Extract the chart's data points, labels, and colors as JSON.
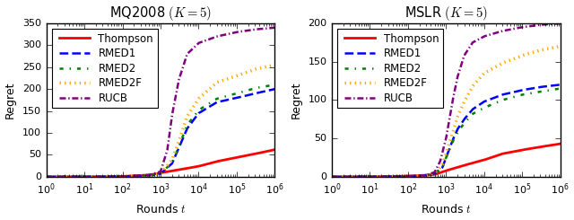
{
  "plots": [
    {
      "title": "MQ2008 $(K=5)$",
      "ylabel": "Regret",
      "xlabel": "Rounds $t$",
      "ylim": [
        0,
        350
      ],
      "yticks": [
        0,
        50,
        100,
        150,
        200,
        250,
        300,
        350
      ],
      "xlim": [
        1,
        1000000
      ]
    },
    {
      "title": "MSLR $(K=5)$",
      "ylabel": "Regret",
      "xlabel": "Rounds $t$",
      "ylim": [
        0,
        200
      ],
      "yticks": [
        0,
        50,
        100,
        150,
        200
      ],
      "xlim": [
        1,
        1000000
      ]
    }
  ],
  "algorithms": [
    {
      "name": "Thompson",
      "color": "#ff0000",
      "linestyle": "-",
      "linewidth": 2.0
    },
    {
      "name": "RMED1",
      "color": "#0000ff",
      "linestyle": "--",
      "linewidth": 1.8
    },
    {
      "name": "RMED2",
      "color": "#008000",
      "linestyle": "-.",
      "linewidth": 1.8
    },
    {
      "name": "RMED2F",
      "color": "#ffaa00",
      "linestyle": ":",
      "linewidth": 2.2
    },
    {
      "name": "RUCB",
      "color": "#800080",
      "linestyle": "-.",
      "linewidth": 1.8
    }
  ],
  "curves": {
    "MQ2008": {
      "Thompson": {
        "x": [
          1,
          5,
          10,
          50,
          100,
          500,
          1000,
          3000,
          10000,
          30000,
          100000,
          300000,
          1000000
        ],
        "y": [
          0,
          0.05,
          0.1,
          0.5,
          1.0,
          4,
          9,
          16,
          24,
          35,
          44,
          52,
          62
        ]
      },
      "RMED1": {
        "x": [
          1,
          10,
          100,
          500,
          1000,
          2000,
          3000,
          5000,
          10000,
          30000,
          100000,
          300000,
          1000000
        ],
        "y": [
          0,
          0.1,
          0.8,
          3,
          7,
          30,
          65,
          110,
          145,
          170,
          180,
          190,
          200
        ]
      },
      "RMED2": {
        "x": [
          1,
          10,
          100,
          500,
          1000,
          2000,
          3000,
          5000,
          10000,
          30000,
          100000,
          300000,
          1000000
        ],
        "y": [
          0,
          0.1,
          0.8,
          3,
          7,
          32,
          68,
          118,
          152,
          178,
          190,
          202,
          210
        ]
      },
      "RMED2F": {
        "x": [
          1,
          10,
          100,
          500,
          1000,
          2000,
          3000,
          5000,
          10000,
          30000,
          100000,
          300000,
          1000000
        ],
        "y": [
          0,
          0.1,
          0.8,
          3,
          8,
          38,
          80,
          138,
          178,
          215,
          230,
          245,
          255
        ]
      },
      "RUCB": {
        "x": [
          1,
          10,
          100,
          500,
          1000,
          1500,
          2000,
          3000,
          5000,
          10000,
          30000,
          100000,
          300000,
          1000000
        ],
        "y": [
          0,
          0.1,
          0.8,
          4,
          12,
          60,
          140,
          220,
          280,
          305,
          320,
          330,
          336,
          340
        ]
      }
    },
    "MSLR": {
      "Thompson": {
        "x": [
          1,
          10,
          100,
          300,
          500,
          1000,
          3000,
          10000,
          30000,
          100000,
          300000,
          1000000
        ],
        "y": [
          0,
          0.1,
          0.8,
          2,
          3,
          8,
          15,
          22,
          30,
          35,
          39,
          43
        ]
      },
      "RMED1": {
        "x": [
          1,
          10,
          100,
          300,
          500,
          800,
          1000,
          1500,
          2000,
          3000,
          5000,
          10000,
          30000,
          100000,
          300000,
          1000000
        ],
        "y": [
          0,
          0.1,
          0.8,
          2,
          4,
          12,
          25,
          48,
          62,
          75,
          88,
          98,
          107,
          113,
          117,
          120
        ]
      },
      "RMED2": {
        "x": [
          1,
          10,
          100,
          300,
          500,
          800,
          1000,
          1500,
          2000,
          3000,
          5000,
          10000,
          30000,
          100000,
          300000,
          1000000
        ],
        "y": [
          0,
          0.1,
          0.8,
          2,
          4,
          12,
          25,
          46,
          58,
          70,
          82,
          90,
          100,
          107,
          111,
          115
        ]
      },
      "RMED2F": {
        "x": [
          1,
          10,
          100,
          300,
          500,
          800,
          1000,
          1500,
          2000,
          3000,
          5000,
          10000,
          30000,
          100000,
          300000,
          1000000
        ],
        "y": [
          0,
          0.1,
          0.8,
          2,
          5,
          15,
          30,
          58,
          78,
          98,
          118,
          135,
          148,
          158,
          165,
          170
        ]
      },
      "RUCB": {
        "x": [
          1,
          10,
          100,
          300,
          500,
          700,
          1000,
          1500,
          2000,
          3000,
          5000,
          10000,
          30000,
          100000,
          300000,
          1000000
        ],
        "y": [
          0,
          0.1,
          0.8,
          2,
          6,
          20,
          50,
          100,
          130,
          158,
          175,
          183,
          190,
          195,
          198,
          200
        ]
      }
    }
  },
  "legend_fontsize": 8.5,
  "title_fontsize": 10.5,
  "axis_fontsize": 9,
  "tick_fontsize": 8
}
